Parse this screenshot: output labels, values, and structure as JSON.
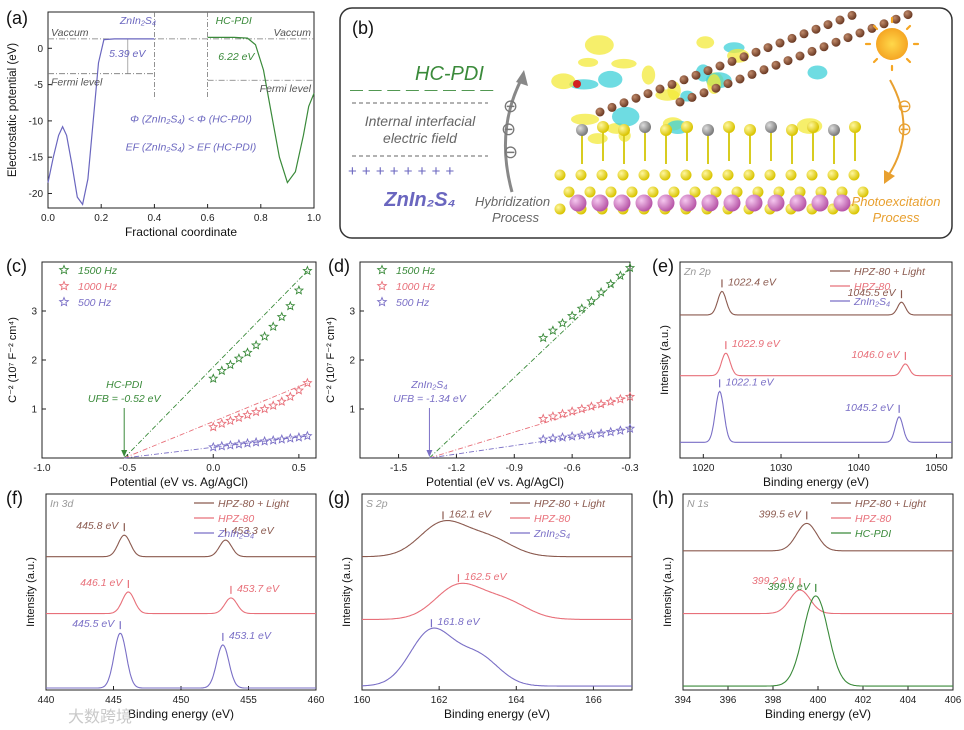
{
  "colors": {
    "brown": "#8b5a4f",
    "pink": "#e8707a",
    "purple": "#7a6fc6",
    "green": "#3a8a3a",
    "blue": "#6a66bf",
    "gray": "#666666",
    "orange": "#e8a030"
  },
  "watermark": {
    "text": "大数跨境"
  },
  "chart_data": [
    {
      "id": "a",
      "panel_label": "(a)",
      "type": "line",
      "xlabel": "Fractional coordinate",
      "ylabel": "Electrostatic potential (eV)",
      "xlim": [
        0.0,
        1.0
      ],
      "ylim": [
        -22,
        5
      ],
      "xticks": [
        "0.0",
        "0.2",
        "0.4",
        "0.6",
        "0.8",
        "1.0"
      ],
      "yticks": [
        "0",
        "-5",
        "-10",
        "-15",
        "-20"
      ],
      "series": [
        {
          "name": "ZnIn2S4",
          "color_key": "blue",
          "x": [
            0.0,
            0.02,
            0.04,
            0.055,
            0.07,
            0.09,
            0.11,
            0.13,
            0.15,
            0.17,
            0.19,
            0.21,
            0.25,
            0.3,
            0.35,
            0.4
          ],
          "y": [
            -18.5,
            -15,
            -12,
            -10.8,
            -12,
            -16,
            -20.5,
            -21.5,
            -18,
            -10,
            -2,
            1.2,
            1.3,
            1.3,
            1.3,
            1.3
          ]
        },
        {
          "name": "HC-PDI",
          "color_key": "green",
          "x": [
            0.6,
            0.65,
            0.7,
            0.75,
            0.78,
            0.81,
            0.84,
            0.87,
            0.9,
            0.93,
            0.96,
            0.98,
            1.0
          ],
          "y": [
            1.5,
            1.5,
            1.5,
            1.4,
            0.5,
            -3,
            -9,
            -15,
            -18.5,
            -17,
            -12,
            -8,
            -6.2
          ]
        }
      ],
      "labels": {
        "left_title": "ZnIn₂S₄",
        "right_title": "HC-PDI",
        "vac_left": "Vaccum",
        "vac_right": "Vaccum",
        "fermi_left": "Fermi level",
        "fermi_right": "Fermi level",
        "wf_left": "5.39 eV",
        "wf_right": "6.22 eV",
        "rel1": "Φ (ZnIn₂S₄) < Φ (HC-PDI)",
        "rel2": "EF (ZnIn₂S₄) > EF (HC-PDI)"
      }
    },
    {
      "id": "c",
      "panel_label": "(c)",
      "type": "scatter",
      "xlabel": "Potential (eV vs. Ag/AgCl)",
      "ylabel": "C⁻² (10⁷ F⁻² cm⁴)",
      "xlim": [
        -1.0,
        0.6
      ],
      "ylim": [
        0,
        4
      ],
      "xticks": [
        "-1.0",
        "-0.5",
        "0.0",
        "0.5"
      ],
      "yticks": [
        "1",
        "2",
        "3"
      ],
      "intercept_x": -0.52,
      "series": [
        {
          "name": "1500 Hz",
          "color_key": "green",
          "x": [
            0.0,
            0.05,
            0.1,
            0.15,
            0.2,
            0.25,
            0.3,
            0.35,
            0.4,
            0.45,
            0.5,
            0.55
          ],
          "y": [
            1.62,
            1.78,
            1.9,
            2.03,
            2.15,
            2.3,
            2.48,
            2.68,
            2.88,
            3.1,
            3.42,
            3.82
          ]
        },
        {
          "name": "1000 Hz",
          "color_key": "pink",
          "x": [
            0.0,
            0.05,
            0.1,
            0.15,
            0.2,
            0.25,
            0.3,
            0.35,
            0.4,
            0.45,
            0.5,
            0.55
          ],
          "y": [
            0.63,
            0.7,
            0.76,
            0.82,
            0.88,
            0.94,
            1.0,
            1.07,
            1.15,
            1.25,
            1.38,
            1.53
          ]
        },
        {
          "name": "500 Hz",
          "color_key": "purple",
          "x": [
            0.0,
            0.05,
            0.1,
            0.15,
            0.2,
            0.25,
            0.3,
            0.35,
            0.4,
            0.45,
            0.5,
            0.55
          ],
          "y": [
            0.22,
            0.24,
            0.26,
            0.28,
            0.3,
            0.32,
            0.34,
            0.36,
            0.38,
            0.4,
            0.42,
            0.45
          ]
        }
      ],
      "annotation": {
        "line1": "HC-PDI",
        "line2": "UFB = -0.52 eV",
        "color_key": "green"
      }
    },
    {
      "id": "d",
      "panel_label": "(d)",
      "type": "scatter",
      "xlabel": "Potential (eV vs. Ag/AgCl)",
      "ylabel": "C⁻² (10⁷ F⁻² cm⁴)",
      "xlim": [
        -1.7,
        -0.3
      ],
      "ylim": [
        0,
        4
      ],
      "xticks": [
        "-1.5",
        "-1.2",
        "-0.9",
        "-0.6",
        "-0.3"
      ],
      "yticks": [
        "1",
        "2",
        "3"
      ],
      "intercept_x": -1.34,
      "series": [
        {
          "name": "1500 Hz",
          "color_key": "green",
          "x": [
            -0.75,
            -0.7,
            -0.65,
            -0.6,
            -0.55,
            -0.5,
            -0.45,
            -0.4,
            -0.35,
            -0.3
          ],
          "y": [
            2.45,
            2.6,
            2.75,
            2.9,
            3.05,
            3.2,
            3.38,
            3.55,
            3.72,
            3.88
          ]
        },
        {
          "name": "1000 Hz",
          "color_key": "pink",
          "x": [
            -0.75,
            -0.7,
            -0.65,
            -0.6,
            -0.55,
            -0.5,
            -0.45,
            -0.4,
            -0.35,
            -0.3
          ],
          "y": [
            0.8,
            0.85,
            0.9,
            0.95,
            1.0,
            1.05,
            1.1,
            1.15,
            1.2,
            1.25
          ]
        },
        {
          "name": "500 Hz",
          "color_key": "purple",
          "x": [
            -0.75,
            -0.7,
            -0.65,
            -0.6,
            -0.55,
            -0.5,
            -0.45,
            -0.4,
            -0.35,
            -0.3
          ],
          "y": [
            0.38,
            0.4,
            0.42,
            0.44,
            0.46,
            0.48,
            0.5,
            0.53,
            0.56,
            0.6
          ]
        }
      ],
      "annotation": {
        "line1": "ZnIn₂S₄",
        "line2": "UFB = -1.34 eV",
        "color_key": "purple"
      }
    },
    {
      "id": "e",
      "panel_label": "(e)",
      "type": "line",
      "xlabel": "Binding energy (eV)",
      "ylabel": "Intensity (a.u.)",
      "xlim": [
        1017,
        1052
      ],
      "ylim": [
        0,
        10
      ],
      "xticks": [
        "1020",
        "1030",
        "1040",
        "1050"
      ],
      "corner": "Zn 2p",
      "series": [
        {
          "name": "HPZ-80 + Light",
          "color_key": "brown",
          "baseline": 7.3,
          "peaks": [
            [
              1022.4,
              1.2,
              0.55
            ],
            [
              1045.5,
              0.65,
              0.5
            ]
          ],
          "label1": "1022.4 eV",
          "label2": "1045.5 eV"
        },
        {
          "name": "HPZ-80",
          "color_key": "pink",
          "baseline": 4.2,
          "peaks": [
            [
              1022.9,
              1.15,
              0.55
            ],
            [
              1046.0,
              0.6,
              0.5
            ]
          ],
          "label1": "1022.9 eV",
          "label2": "1046.0 eV"
        },
        {
          "name": "ZnIn₂S₄",
          "color_key": "purple",
          "baseline": 0.8,
          "peaks": [
            [
              1022.1,
              2.6,
              0.55
            ],
            [
              1045.2,
              1.3,
              0.5
            ]
          ],
          "label1": "1022.1 eV",
          "label2": "1045.2 eV"
        }
      ]
    },
    {
      "id": "f",
      "panel_label": "(f)",
      "type": "line",
      "xlabel": "Binding energy (eV)",
      "ylabel": "Intensity (a.u.)",
      "xlim": [
        440,
        460
      ],
      "ylim": [
        0,
        10
      ],
      "xticks": [
        "440",
        "445",
        "450",
        "455",
        "460"
      ],
      "corner": "In 3d",
      "series": [
        {
          "name": "HPZ-80 + Light",
          "color_key": "brown",
          "baseline": 6.8,
          "peaks": [
            [
              445.8,
              1.1,
              0.45
            ],
            [
              453.3,
              0.85,
              0.45
            ]
          ],
          "label1": "445.8 eV",
          "label2": "453.3 eV"
        },
        {
          "name": "HPZ-80",
          "color_key": "pink",
          "baseline": 3.9,
          "peaks": [
            [
              446.1,
              1.1,
              0.45
            ],
            [
              453.7,
              0.8,
              0.45
            ]
          ],
          "label1": "446.1 eV",
          "label2": "453.7 eV"
        },
        {
          "name": "ZnIn₂S₄",
          "color_key": "purple",
          "baseline": 0.1,
          "peaks": [
            [
              445.5,
              2.8,
              0.45
            ],
            [
              453.1,
              2.2,
              0.45
            ]
          ],
          "label1": "445.5 eV",
          "label2": "453.1 eV"
        }
      ]
    },
    {
      "id": "g",
      "panel_label": "(g)",
      "type": "line",
      "xlabel": "Binding energy (eV)",
      "ylabel": "Intensity (a.u.)",
      "xlim": [
        160,
        167
      ],
      "ylim": [
        0,
        10
      ],
      "xticks": [
        "160",
        "162",
        "164",
        "166"
      ],
      "corner": "S 2p",
      "series": [
        {
          "name": "HPZ-80 + Light",
          "color_key": "brown",
          "baseline": 6.8,
          "peaks": [
            [
              162.1,
              1.7,
              0.6
            ],
            [
              163.3,
              0.9,
              0.6
            ]
          ],
          "label1": "162.1 eV"
        },
        {
          "name": "HPZ-80",
          "color_key": "pink",
          "baseline": 3.6,
          "peaks": [
            [
              162.5,
              1.7,
              0.6
            ],
            [
              163.7,
              0.9,
              0.6
            ]
          ],
          "label1": "162.5 eV"
        },
        {
          "name": "ZnIn₂S₄",
          "color_key": "purple",
          "baseline": 0.2,
          "peaks": [
            [
              161.8,
              2.8,
              0.55
            ],
            [
              163.0,
              1.5,
              0.55
            ]
          ],
          "label1": "161.8 eV"
        }
      ]
    },
    {
      "id": "h",
      "panel_label": "(h)",
      "type": "line",
      "xlabel": "Binding energy (eV)",
      "ylabel": "Intensity (a.u.)",
      "xlim": [
        394,
        406
      ],
      "ylim": [
        0,
        10
      ],
      "xticks": [
        "394",
        "396",
        "398",
        "400",
        "402",
        "404",
        "406"
      ],
      "corner": "N 1s",
      "series": [
        {
          "name": "HPZ-80 + Light",
          "color_key": "brown",
          "baseline": 7.1,
          "peaks": [
            [
              399.5,
              1.4,
              0.45
            ]
          ],
          "label1": "399.5 eV"
        },
        {
          "name": "HPZ-80",
          "color_key": "pink",
          "baseline": 3.9,
          "peaks": [
            [
              399.2,
              1.2,
              0.45
            ]
          ],
          "label1": "399.2 eV"
        },
        {
          "name": "HC-PDI",
          "color_key": "green",
          "baseline": 0.2,
          "peaks": [
            [
              399.9,
              4.6,
              0.55
            ]
          ],
          "label1": "399.9 eV"
        }
      ]
    }
  ],
  "panel_b": {
    "panel_label": "(b)",
    "hc_label": "HC-PDI",
    "field_line1": "Internal interfacial",
    "field_line2": "electric field",
    "minus_row": "— — — — — — — —",
    "plus_row": "+ + + + + + + +",
    "zis_label": "ZnIn₂S₄",
    "hyb1": "Hybridization",
    "hyb2": "Process",
    "photo1": "Photoexcitation",
    "photo2": "Process",
    "minus": "⊖"
  }
}
